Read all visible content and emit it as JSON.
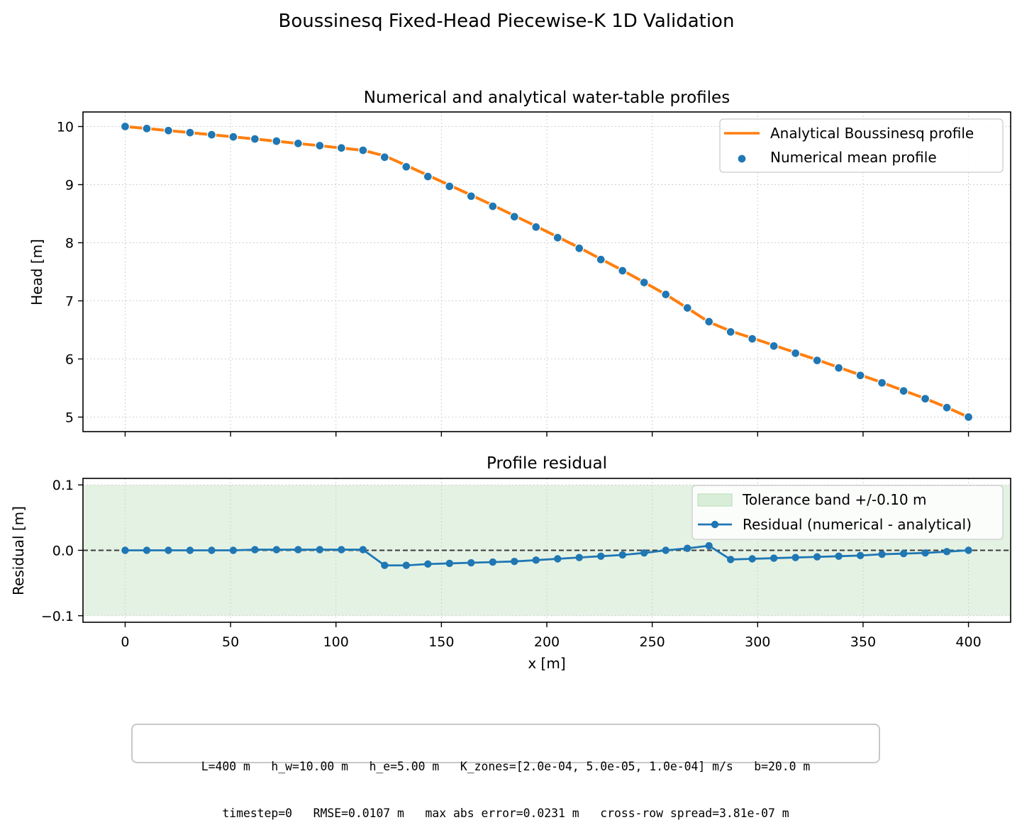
{
  "figure": {
    "suptitle": "Boussinesq Fixed-Head Piecewise-K 1D Validation"
  },
  "chart_data": [
    {
      "type": "line",
      "title": "Numerical and analytical water-table profiles",
      "xlabel": "",
      "ylabel": "Head [m]",
      "xlim": [
        -20,
        420
      ],
      "ylim": [
        4.75,
        10.25
      ],
      "xticks": [
        0,
        50,
        100,
        150,
        200,
        250,
        300,
        350,
        400
      ],
      "yticks": [
        5,
        6,
        7,
        8,
        9,
        10
      ],
      "grid": true,
      "legend": "top-right",
      "x": [
        0,
        10.26,
        20.51,
        30.77,
        41.03,
        51.28,
        61.54,
        71.79,
        82.05,
        92.31,
        102.56,
        112.82,
        123.08,
        133.33,
        143.59,
        153.85,
        164.1,
        174.36,
        184.62,
        194.87,
        205.13,
        215.38,
        225.64,
        235.9,
        246.15,
        256.41,
        266.67,
        276.92,
        287.18,
        297.44,
        307.69,
        317.95,
        328.21,
        338.46,
        348.72,
        358.97,
        369.23,
        379.49,
        389.74,
        400
      ],
      "series": [
        {
          "name": "Analytical Boussinesq profile",
          "kind": "line",
          "color": "#ff7f0e",
          "values": [
            10.0,
            9.965,
            9.93,
            9.895,
            9.858,
            9.822,
            9.785,
            9.747,
            9.708,
            9.67,
            9.63,
            9.59,
            9.495,
            9.33,
            9.16,
            8.99,
            8.82,
            8.645,
            8.465,
            8.285,
            8.1,
            7.915,
            7.72,
            7.525,
            7.32,
            7.11,
            6.875,
            6.635,
            6.48,
            6.36,
            6.235,
            6.11,
            5.985,
            5.855,
            5.725,
            5.595,
            5.455,
            5.32,
            5.165,
            5.0
          ]
        },
        {
          "name": "Numerical mean profile",
          "kind": "scatter",
          "color": "#1f77b4",
          "values": [
            10.0,
            9.965,
            9.93,
            9.895,
            9.858,
            9.822,
            9.786,
            9.748,
            9.709,
            9.671,
            9.631,
            9.591,
            9.472,
            9.307,
            9.139,
            8.97,
            8.801,
            8.627,
            8.448,
            8.27,
            8.087,
            7.904,
            7.711,
            7.518,
            7.316,
            7.11,
            6.878,
            6.642,
            6.466,
            6.347,
            6.223,
            6.099,
            5.975,
            5.846,
            5.717,
            5.589,
            5.45,
            5.316,
            5.163,
            5.0
          ]
        }
      ]
    },
    {
      "type": "line",
      "title": "Profile residual",
      "xlabel": "x [m]",
      "ylabel": "Residual [m]",
      "xlim": [
        -20,
        420
      ],
      "ylim": [
        -0.11,
        0.11
      ],
      "xticks": [
        0,
        50,
        100,
        150,
        200,
        250,
        300,
        350,
        400
      ],
      "yticks": [
        0.1,
        0.0,
        -0.1
      ],
      "ytick_labels": [
        "0.1",
        "0.0",
        "−0.1"
      ],
      "grid": true,
      "legend": "top-right",
      "band": {
        "name": "Tolerance band +/-0.10 m",
        "low": -0.1,
        "high": 0.1,
        "color": "#cde8cd"
      },
      "reference_line": {
        "y": 0.0,
        "style": "dashed",
        "color": "#3a3a3a"
      },
      "x": [
        0,
        10.26,
        20.51,
        30.77,
        41.03,
        51.28,
        61.54,
        71.79,
        82.05,
        92.31,
        102.56,
        112.82,
        123.08,
        133.33,
        143.59,
        153.85,
        164.1,
        174.36,
        184.62,
        194.87,
        205.13,
        215.38,
        225.64,
        235.9,
        246.15,
        256.41,
        266.67,
        276.92,
        287.18,
        297.44,
        307.69,
        317.95,
        328.21,
        338.46,
        348.72,
        358.97,
        369.23,
        379.49,
        389.74,
        400
      ],
      "series": [
        {
          "name": "Residual (numerical - analytical)",
          "kind": "line+markers",
          "color": "#1f77b4",
          "values": [
            0.0,
            0.0,
            0.0,
            0.0,
            0.0,
            0.0,
            0.001,
            0.001,
            0.001,
            0.001,
            0.001,
            0.001,
            -0.023,
            -0.023,
            -0.021,
            -0.02,
            -0.019,
            -0.018,
            -0.017,
            -0.015,
            -0.013,
            -0.011,
            -0.009,
            -0.007,
            -0.004,
            0.0,
            0.003,
            0.007,
            -0.014,
            -0.013,
            -0.012,
            -0.011,
            -0.01,
            -0.009,
            -0.008,
            -0.006,
            -0.005,
            -0.004,
            -0.002,
            0.0
          ]
        }
      ]
    }
  ],
  "footer": {
    "line1": "L=400 m   h_w=10.00 m   h_e=5.00 m   K_zones=[2.0e-04, 5.0e-05, 1.0e-04] m/s   b=20.0 m",
    "line2": "timestep=0   RMSE=0.0107 m   max abs error=0.0231 m   cross-row spread=3.81e-07 m"
  }
}
